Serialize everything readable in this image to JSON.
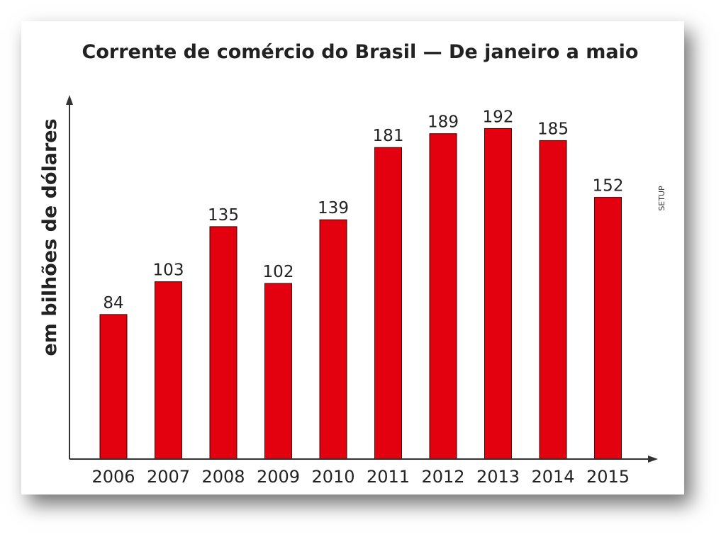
{
  "chart_data": {
    "type": "bar",
    "title": "Corrente de comércio do Brasil — De janeiro a maio",
    "ylabel": "em bilhões de dólares",
    "xlabel": "",
    "categories": [
      "2006",
      "2007",
      "2008",
      "2009",
      "2010",
      "2011",
      "2012",
      "2013",
      "2014",
      "2015"
    ],
    "values": [
      84,
      103,
      135,
      102,
      139,
      181,
      189,
      192,
      185,
      152
    ],
    "ylim": [
      0,
      210
    ],
    "bar_color": "#e3000f",
    "data_labels": true,
    "grid": false
  },
  "credit": "SETUP"
}
